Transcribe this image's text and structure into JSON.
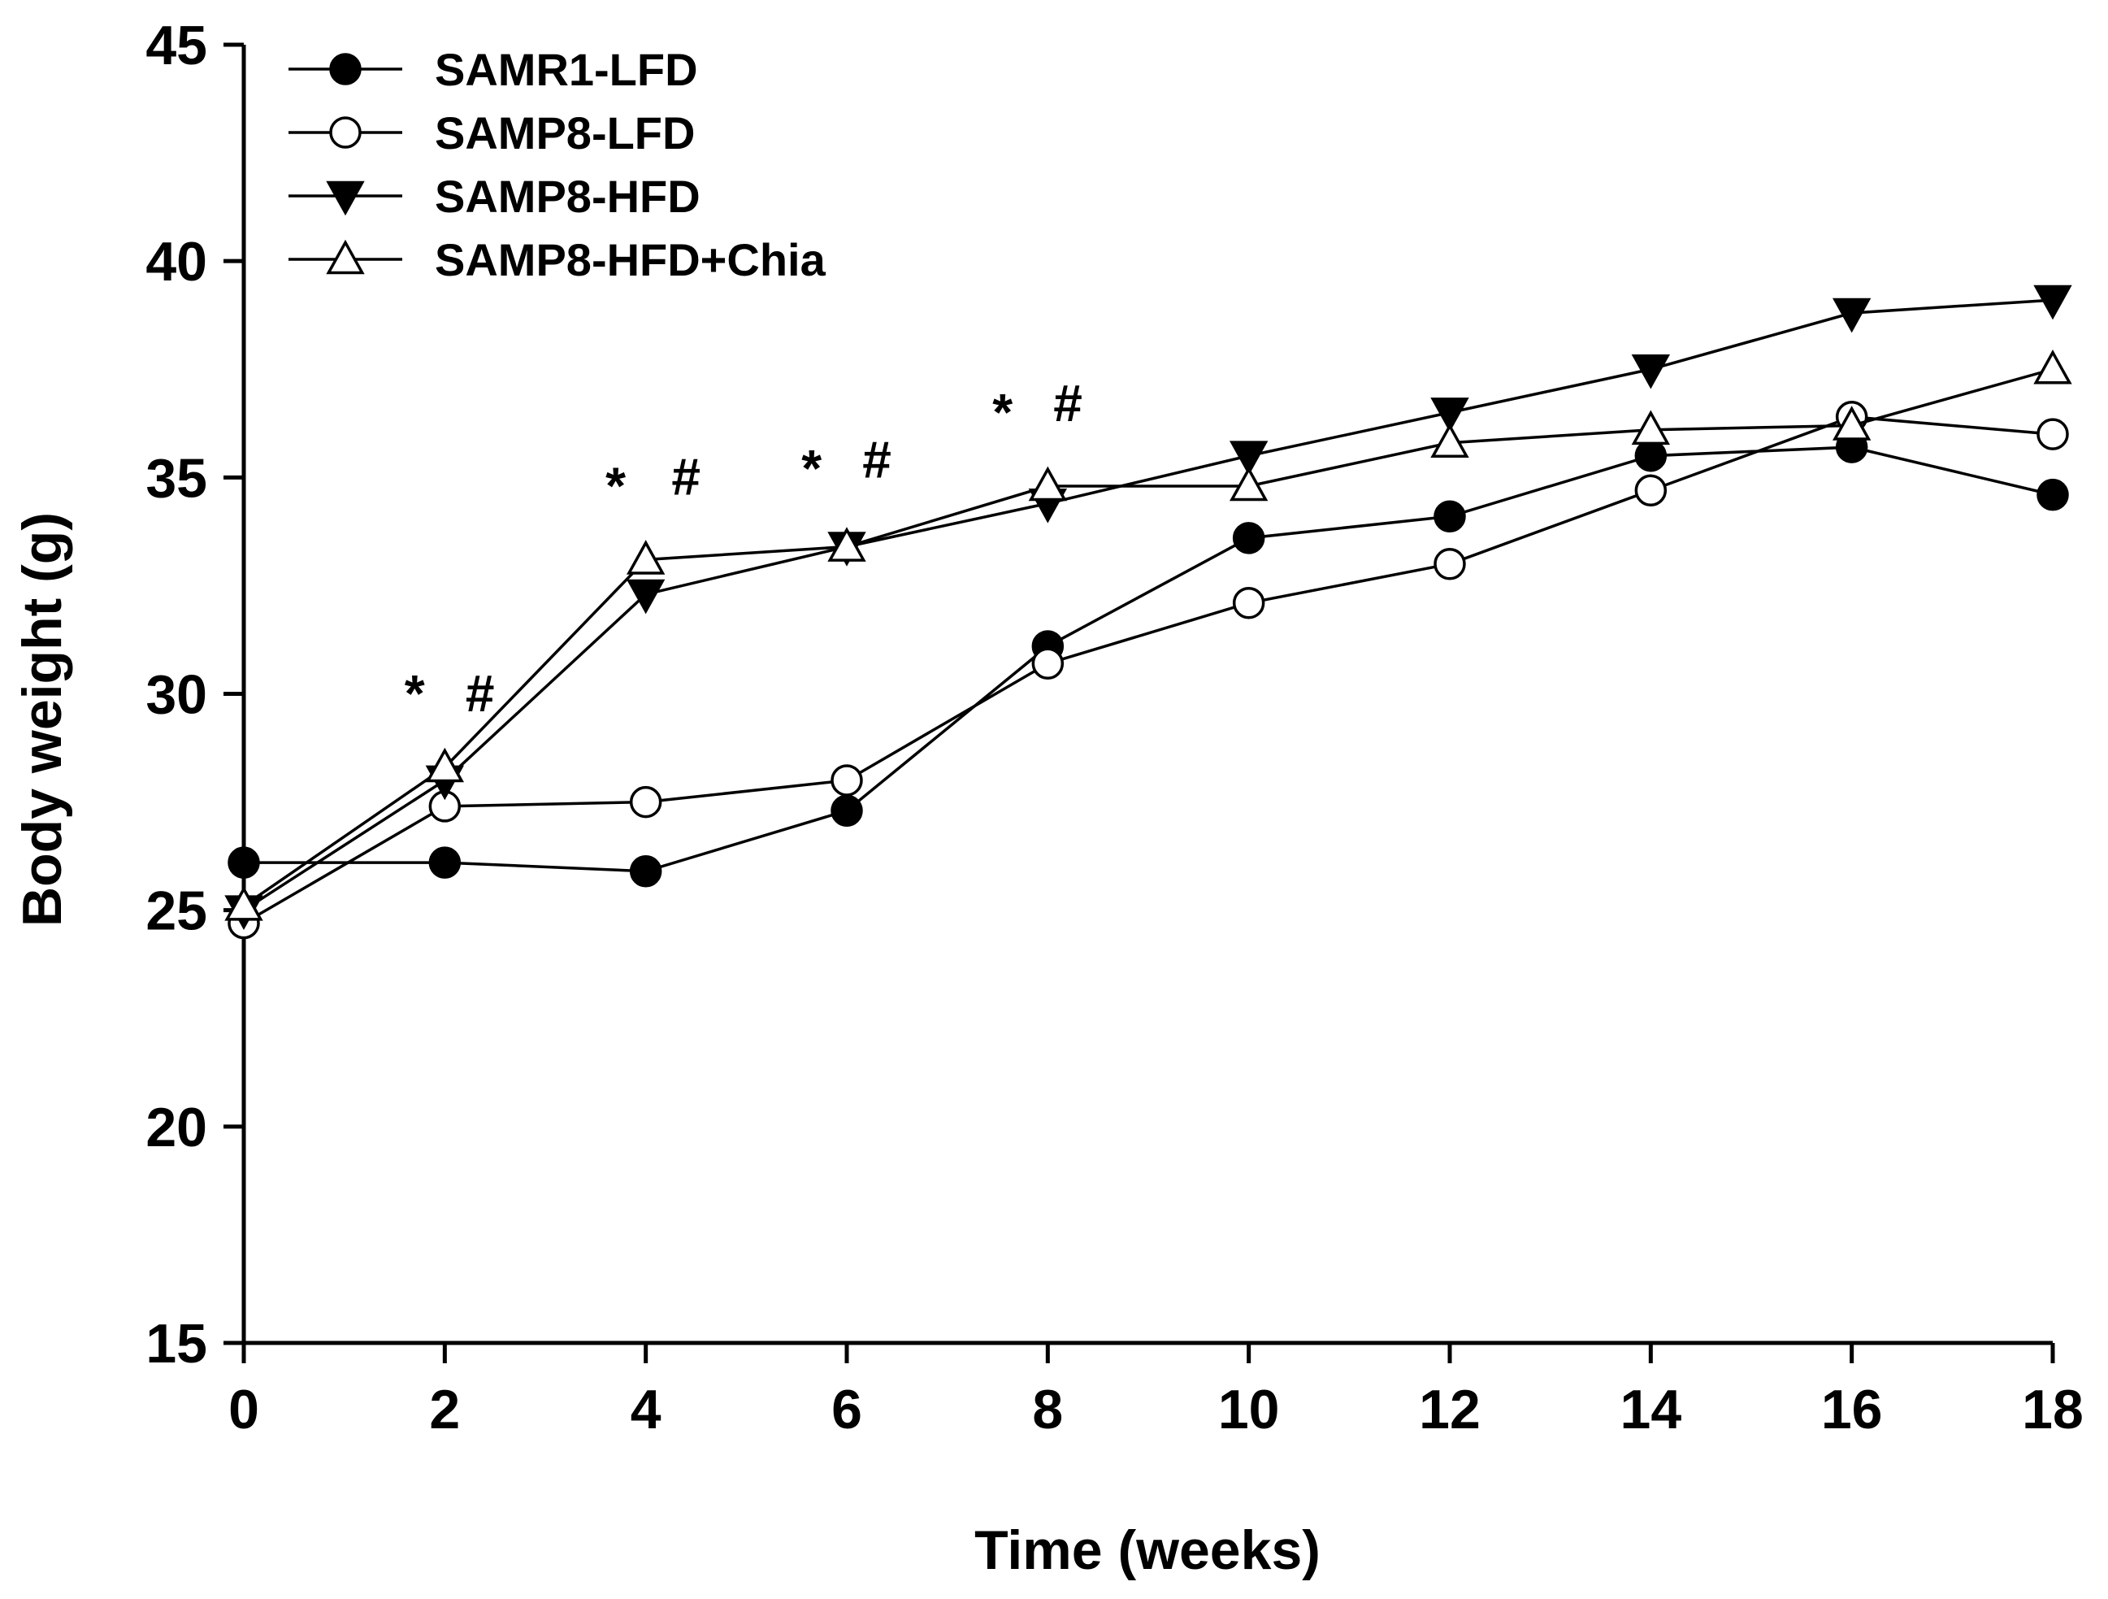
{
  "chart_data": {
    "type": "line",
    "title": "",
    "xlabel": "Time (weeks)",
    "ylabel": "Body weight (g)",
    "xlim": [
      0,
      18
    ],
    "ylim": [
      15,
      45
    ],
    "x_ticks": [
      0,
      2,
      4,
      6,
      8,
      10,
      12,
      14,
      16,
      18
    ],
    "y_ticks": [
      15,
      20,
      25,
      30,
      35,
      40,
      45
    ],
    "x": [
      0,
      2,
      4,
      6,
      8,
      10,
      12,
      14,
      16,
      18
    ],
    "legend_position": "top-left",
    "series": [
      {
        "name": "SAMR1-LFD",
        "marker": "circle",
        "fill": "#000000",
        "values": [
          26.1,
          26.1,
          25.9,
          27.3,
          31.1,
          33.6,
          34.1,
          35.5,
          35.7,
          34.6
        ]
      },
      {
        "name": "SAMP8-LFD",
        "marker": "circle",
        "fill": "#ffffff",
        "values": [
          24.7,
          27.4,
          27.5,
          28.0,
          30.7,
          32.1,
          33.0,
          34.7,
          36.4,
          36.0
        ]
      },
      {
        "name": "SAMP8-HFD",
        "marker": "triangle-down",
        "fill": "#000000",
        "values": [
          25.0,
          28.0,
          32.3,
          33.4,
          34.4,
          35.5,
          36.5,
          37.5,
          38.8,
          39.1
        ]
      },
      {
        "name": "SAMP8-HFD+Chia",
        "marker": "triangle-up",
        "fill": "#ffffff",
        "values": [
          25.1,
          28.3,
          33.1,
          33.4,
          34.8,
          34.8,
          35.8,
          36.1,
          36.2,
          37.5
        ]
      }
    ],
    "annotations": [
      {
        "text": "*",
        "x": 1.7,
        "y": 29.6
      },
      {
        "text": "#",
        "x": 2.35,
        "y": 29.6
      },
      {
        "text": "*",
        "x": 3.7,
        "y": 34.4
      },
      {
        "text": "#",
        "x": 4.4,
        "y": 34.6
      },
      {
        "text": "*",
        "x": 5.65,
        "y": 34.8
      },
      {
        "text": "#",
        "x": 6.3,
        "y": 35.0
      },
      {
        "text": "*",
        "x": 7.55,
        "y": 36.1
      },
      {
        "text": "#",
        "x": 8.2,
        "y": 36.3
      }
    ]
  }
}
